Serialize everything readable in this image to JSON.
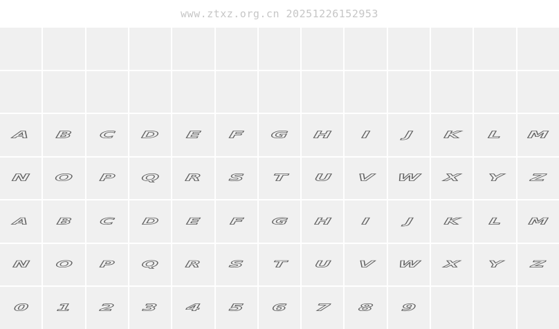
{
  "watermark": "www.ztxz.org.cn 20251226152953",
  "grid": {
    "columns": 13,
    "rows": [
      {
        "name": "empty-row-1",
        "cells": [
          "",
          "",
          "",
          "",
          "",
          "",
          "",
          "",
          "",
          "",
          "",
          "",
          ""
        ]
      },
      {
        "name": "empty-row-2",
        "cells": [
          "",
          "",
          "",
          "",
          "",
          "",
          "",
          "",
          "",
          "",
          "",
          "",
          ""
        ]
      },
      {
        "name": "uppercase-a-m",
        "cells": [
          "A",
          "B",
          "C",
          "D",
          "E",
          "F",
          "G",
          "H",
          "I",
          "J",
          "K",
          "L",
          "M"
        ]
      },
      {
        "name": "uppercase-n-z",
        "cells": [
          "N",
          "O",
          "P",
          "Q",
          "R",
          "S",
          "T",
          "U",
          "V",
          "W",
          "X",
          "Y",
          "Z"
        ]
      },
      {
        "name": "lowercase-a-m",
        "cells": [
          "a",
          "b",
          "c",
          "d",
          "e",
          "f",
          "g",
          "h",
          "i",
          "j",
          "k",
          "l",
          "m"
        ]
      },
      {
        "name": "lowercase-n-z",
        "cells": [
          "n",
          "o",
          "p",
          "q",
          "r",
          "s",
          "t",
          "u",
          "v",
          "w",
          "x",
          "y",
          "z"
        ]
      },
      {
        "name": "digits",
        "cells": [
          "0",
          "1",
          "2",
          "3",
          "4",
          "5",
          "6",
          "7",
          "8",
          "9",
          "",
          "",
          ""
        ]
      }
    ]
  },
  "colors": {
    "cell_background": "#f0f0f0",
    "gutter": "#ffffff",
    "glyph_stroke": "#5f5f5f",
    "watermark_text": "#c6c6c6"
  }
}
